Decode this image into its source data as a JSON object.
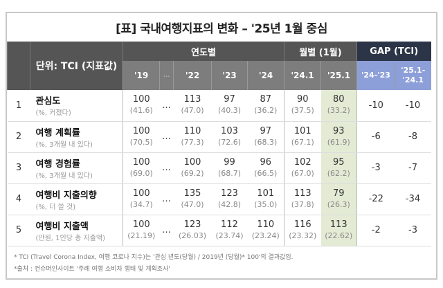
{
  "title": "[표] 국내여행지표의 변화 – '25년 1월 중심",
  "header": {
    "unit_label": "단위: TCI (지표값)",
    "group_yearly": "연도별",
    "group_monthly": "월별 (1월)",
    "group_gap": "GAP (TCI)",
    "columns": [
      "'19",
      "…",
      "'22",
      "'23",
      "'24",
      "'24.1",
      "'25.1",
      "'24-'23",
      "'25.1-'24.1"
    ]
  },
  "rows": [
    {
      "no": "1",
      "name": "관심도",
      "sub": "(%, 커졌다)",
      "values": [
        [
          "100",
          "(41.6)"
        ],
        [
          "113",
          "(47.0)"
        ],
        [
          "97",
          "(40.3)"
        ],
        [
          "87",
          "(36.2)"
        ],
        [
          "90",
          "(37.5)"
        ],
        [
          "80",
          "(33.2)"
        ]
      ],
      "gaps": [
        "-10",
        "-10"
      ]
    },
    {
      "no": "2",
      "name": "여행 계획률",
      "sub": "(%, 3개월 내 있다)",
      "values": [
        [
          "100",
          "(70.5)"
        ],
        [
          "110",
          "(77.3)"
        ],
        [
          "103",
          "(72.6)"
        ],
        [
          "97",
          "(68.3)"
        ],
        [
          "101",
          "(67.1)"
        ],
        [
          "93",
          "(61.9)"
        ]
      ],
      "gaps": [
        "-6",
        "-8"
      ]
    },
    {
      "no": "3",
      "name": "여행 경험률",
      "sub": "(%, 3개월 내 있다)",
      "values": [
        [
          "100",
          "(69.0)"
        ],
        [
          "100",
          "(69.2)"
        ],
        [
          "99",
          "(68.7)"
        ],
        [
          "96",
          "(66.5)"
        ],
        [
          "102",
          "(67.0)"
        ],
        [
          "95",
          "(62.2)"
        ]
      ],
      "gaps": [
        "-3",
        "-7"
      ]
    },
    {
      "no": "4",
      "name": "여행비 지출의향",
      "sub": "(%, 더 쓸 것)",
      "values": [
        [
          "100",
          "(34.7)"
        ],
        [
          "135",
          "(47.0)"
        ],
        [
          "123",
          "(42.8)"
        ],
        [
          "101",
          "(35.0)"
        ],
        [
          "113",
          "(37.8)"
        ],
        [
          "79",
          "(26.3)"
        ]
      ],
      "gaps": [
        "-22",
        "-34"
      ]
    },
    {
      "no": "5",
      "name": "여행비 지출액",
      "sub": "(만원, 1인당 총 지출액)",
      "values": [
        [
          "100",
          "(21.19)"
        ],
        [
          "123",
          "(26.03)"
        ],
        [
          "112",
          "(23.74)"
        ],
        [
          "110",
          "(23.24)"
        ],
        [
          "116",
          "(23.32)"
        ],
        [
          "113",
          "(22.62)"
        ]
      ],
      "gaps": [
        "-2",
        "-3"
      ]
    }
  ],
  "ellipsis": "…",
  "footnotes": [
    "* TCI (Travel Corona Index, 여행 코로나 지수)는 '관심 년도(당월) / 2019년 (당월)* 100'의 결과값임.",
    "*출처 : 컨슈머인사이트 '주례 여행 소비자 행태 및 계획조사'"
  ],
  "colors": {
    "header": "#555555",
    "subheader": "#7d7d7d",
    "gap_header": "#2c3547",
    "gap_subheader": "#8d9fd9",
    "highlight": "#e3ebd5",
    "gap_text": "#3b3ba8"
  }
}
